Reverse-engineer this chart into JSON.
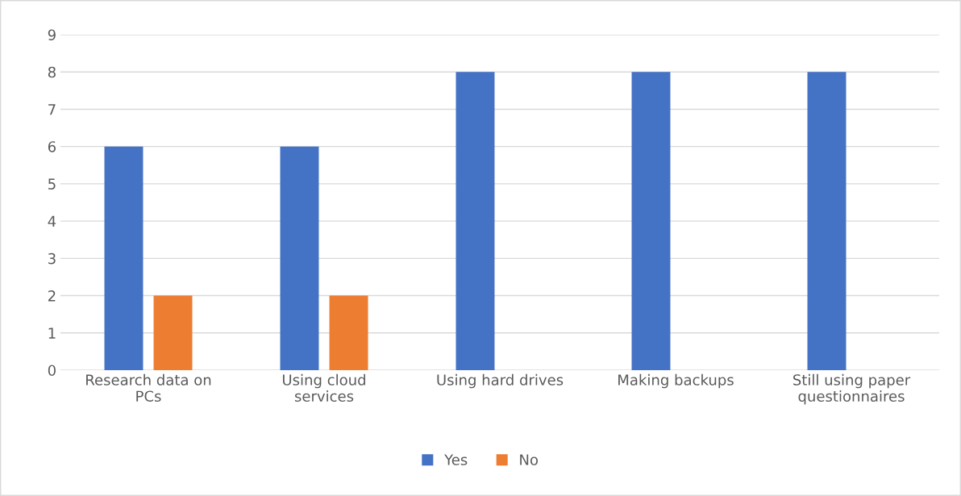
{
  "chart_data": {
    "type": "bar",
    "categories": [
      "Research data on PCs",
      "Using cloud services",
      "Using hard drives",
      "Making backups",
      "Still using paper questionnaires"
    ],
    "series": [
      {
        "name": "Yes",
        "color": "#4472c4",
        "values": [
          6,
          6,
          8,
          8,
          8
        ]
      },
      {
        "name": "No",
        "color": "#ed7d31",
        "values": [
          2,
          2,
          null,
          null,
          null
        ]
      }
    ],
    "ylim": [
      0,
      9
    ],
    "yticks": [
      0,
      1,
      2,
      3,
      4,
      5,
      6,
      7,
      8,
      9
    ],
    "grid": "y",
    "legend": "bottom"
  }
}
